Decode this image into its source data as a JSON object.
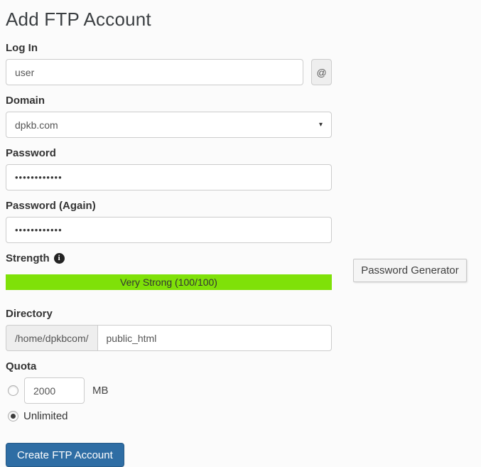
{
  "page": {
    "title": "Add FTP Account"
  },
  "form": {
    "login": {
      "label": "Log In",
      "value": "user",
      "addon": "@"
    },
    "domain": {
      "label": "Domain",
      "selected_option": "dpkb.com"
    },
    "password": {
      "label": "Password",
      "masked_value": "••••••••••••"
    },
    "password_again": {
      "label": "Password (Again)",
      "masked_value": "••••••••••••"
    },
    "strength": {
      "label": "Strength",
      "meter_text": "Very Strong (100/100)"
    },
    "password_generator": {
      "label": "Password Generator"
    },
    "directory": {
      "label": "Directory",
      "prefix": "/home/dpkbcom/",
      "value": "public_html"
    },
    "quota": {
      "label": "Quota",
      "limited": {
        "value": "2000",
        "unit": "MB",
        "selected": false
      },
      "unlimited": {
        "label": "Unlimited",
        "selected": true
      }
    },
    "submit": {
      "label": "Create FTP Account"
    }
  },
  "colors": {
    "strength_bar": "#7fe108",
    "primary_button": "#2e6da4",
    "addon_background": "#eeeeee"
  }
}
